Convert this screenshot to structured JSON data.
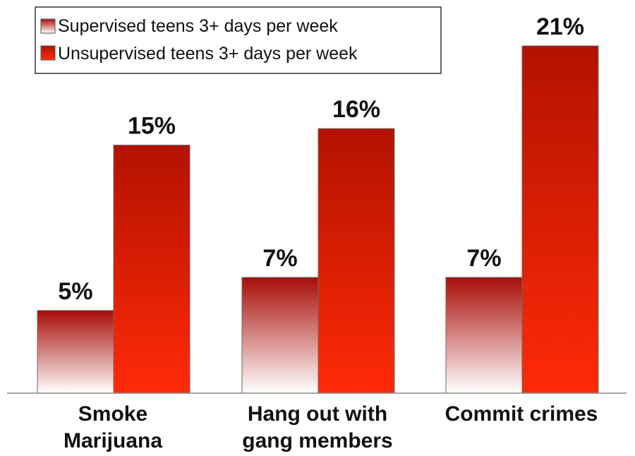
{
  "chart_data": {
    "type": "bar",
    "title": "",
    "xlabel": "",
    "ylabel": "",
    "ylim": [
      0,
      23
    ],
    "grid": false,
    "legend_position": "top-left",
    "categories": [
      [
        "Smoke",
        "Marijuana"
      ],
      [
        "Hang out with",
        "gang members"
      ],
      [
        "Commit crimes"
      ]
    ],
    "series": [
      {
        "name": "Supervised teens 3+ days per week",
        "values": [
          5,
          7,
          7
        ],
        "labels": [
          "5%",
          "7%",
          "7%"
        ]
      },
      {
        "name": "Unsupervised teens 3+ days per week",
        "values": [
          15,
          16,
          21
        ],
        "labels": [
          "15%",
          "16%",
          "21%"
        ]
      }
    ]
  },
  "colors": {
    "supervised_top": "#a80d08",
    "supervised_bottom": "#ffffff",
    "unsupervised_top": "#b31200",
    "unsupervised_bottom": "#ff2a08",
    "axis": "#888888",
    "text": "#111111"
  }
}
